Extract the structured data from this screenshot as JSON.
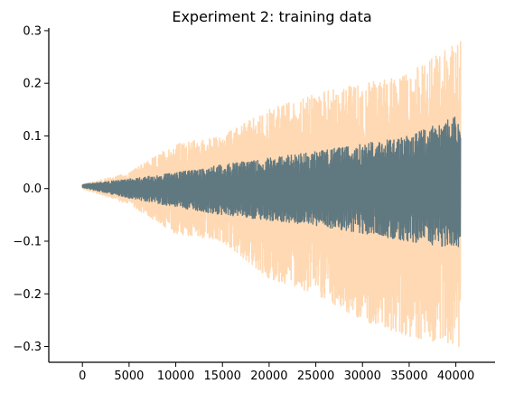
{
  "chart_data": {
    "type": "line",
    "title": "Experiment 2: training data",
    "xlabel": "",
    "ylabel": "",
    "xlim": [
      -3600,
      44200
    ],
    "ylim": [
      -0.33,
      0.305
    ],
    "xticks": [
      0,
      5000,
      10000,
      15000,
      20000,
      25000,
      30000,
      35000,
      40000
    ],
    "xtick_labels": [
      "0",
      "5000",
      "10000",
      "15000",
      "20000",
      "25000",
      "30000",
      "35000",
      "40000"
    ],
    "yticks": [
      -0.3,
      -0.2,
      -0.1,
      0.0,
      0.1,
      0.2,
      0.3
    ],
    "ytick_labels": [
      "−0.3",
      "−0.2",
      "−0.1",
      "0.0",
      "0.1",
      "0.2",
      "0.3"
    ],
    "grid": false,
    "spines": [
      "left",
      "bottom"
    ],
    "series": [
      {
        "color": "#ffd9b3",
        "x_range": [
          0,
          40500
        ],
        "envelope": {
          "x": [
            0,
            5000,
            10000,
            15000,
            20000,
            25000,
            30000,
            35000,
            40500
          ],
          "upper": [
            0.008,
            0.03,
            0.085,
            0.1,
            0.15,
            0.18,
            0.2,
            0.22,
            0.28
          ],
          "lower": [
            0.0,
            -0.03,
            -0.085,
            -0.1,
            -0.17,
            -0.2,
            -0.25,
            -0.28,
            -0.3
          ]
        }
      },
      {
        "color": "#607880",
        "x_range": [
          0,
          40500
        ],
        "envelope": {
          "x": [
            0,
            5000,
            10000,
            15000,
            20000,
            25000,
            30000,
            35000,
            40500
          ],
          "upper": [
            0.008,
            0.018,
            0.03,
            0.045,
            0.058,
            0.07,
            0.085,
            0.1,
            0.14
          ],
          "lower": [
            0.002,
            -0.018,
            -0.035,
            -0.05,
            -0.06,
            -0.07,
            -0.085,
            -0.1,
            -0.115
          ]
        }
      }
    ]
  }
}
